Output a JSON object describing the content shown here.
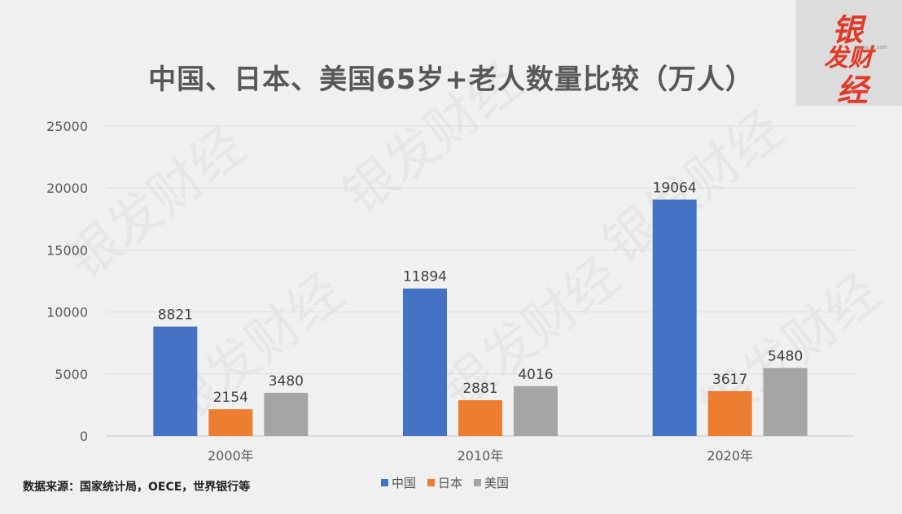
{
  "title": "中国、日本、美国65岁+老人数量比较（万人）",
  "source_note": "数据来源：国家统计局，OECE，世界银行等",
  "watermark_text": "银发财经",
  "logo": {
    "line1": "银",
    "line2": "发财",
    "line3": "经",
    "tiny_text": "www.xx.com"
  },
  "colors": {
    "中国": "#4472c4",
    "日本": "#ed7d31",
    "美国": "#a5a5a5",
    "background": "#f0f0f0",
    "title": "#585858"
  },
  "chart_data": {
    "type": "bar",
    "title": "中国、日本、美国65岁+老人数量比较（万人）",
    "categories": [
      "2000年",
      "2010年",
      "2020年"
    ],
    "series": [
      {
        "name": "中国",
        "values": [
          8821,
          11894,
          19064
        ]
      },
      {
        "name": "日本",
        "values": [
          2154,
          2881,
          3617
        ]
      },
      {
        "name": "美国",
        "values": [
          3480,
          4016,
          5480
        ]
      }
    ],
    "ylim": [
      0,
      25000
    ],
    "yticks": [
      0,
      5000,
      10000,
      15000,
      20000,
      25000
    ],
    "ytick_labels": [
      "0",
      "5000",
      "10000",
      "15000",
      "20000",
      "25000"
    ],
    "grid": true,
    "legend_position": "bottom",
    "data_labels": true
  }
}
